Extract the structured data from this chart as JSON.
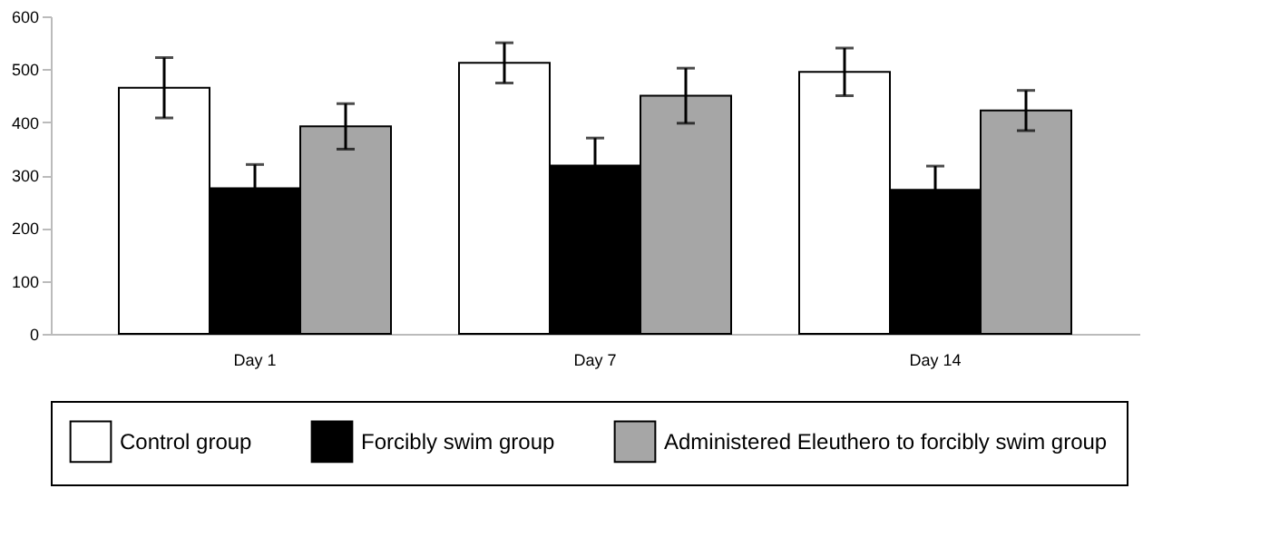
{
  "chart_data": {
    "type": "bar",
    "categories": [
      "Day 1",
      "Day 7",
      "Day 14"
    ],
    "series": [
      {
        "name": "Control group",
        "color": "#ffffff",
        "values": [
          465,
          512,
          495
        ],
        "errors": [
          57,
          38,
          45
        ]
      },
      {
        "name": "Forcibly swim group",
        "color": "#000000",
        "values": [
          275,
          318,
          272
        ],
        "errors": [
          45,
          52,
          45
        ]
      },
      {
        "name": "Administered Eleuthero to forcibly swim group",
        "color": "#a6a6a6",
        "values": [
          392,
          450,
          422
        ],
        "errors": [
          43,
          52,
          38
        ]
      }
    ],
    "ylim": [
      0,
      600
    ],
    "yticks": [
      0,
      100,
      200,
      300,
      400,
      500,
      600
    ],
    "grid": false,
    "legend": "bottom"
  }
}
